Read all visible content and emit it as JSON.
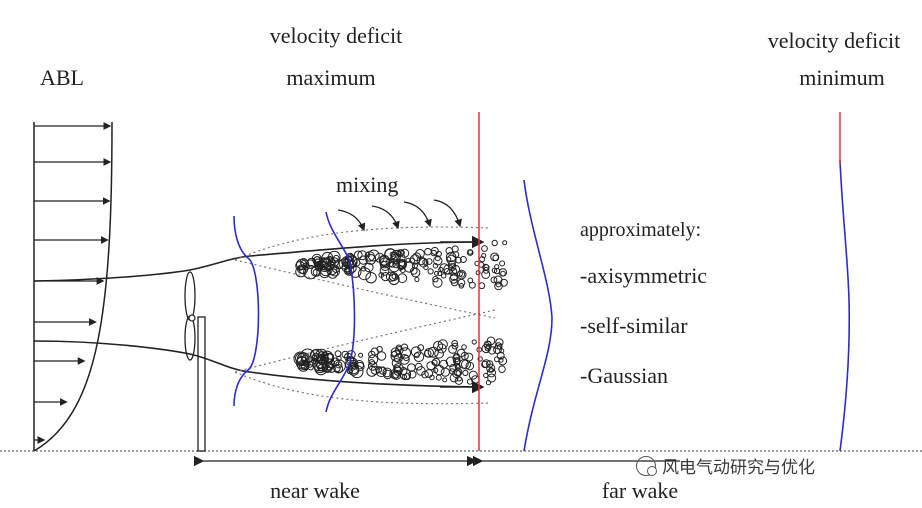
{
  "labels": {
    "abl": "ABL",
    "deficit_max_line1": "velocity deficit",
    "deficit_max_line2": "maximum",
    "deficit_min_line1": "velocity deficit",
    "deficit_min_line2": "minimum",
    "mixing": "mixing",
    "approximately": "approximately:",
    "prop_axisymmetric": "-axisymmetric",
    "prop_self_similar": "-self-similar",
    "prop_gaussian": "-Gaussian",
    "near_wake": "near wake",
    "far_wake": "far wake"
  },
  "watermark": {
    "icon": "wechat-icon",
    "text": "风电气动研究与优化"
  },
  "colors": {
    "profile_blue": "#2b2bd6",
    "boundary_red": "#e8303a",
    "ink": "#222222"
  }
}
